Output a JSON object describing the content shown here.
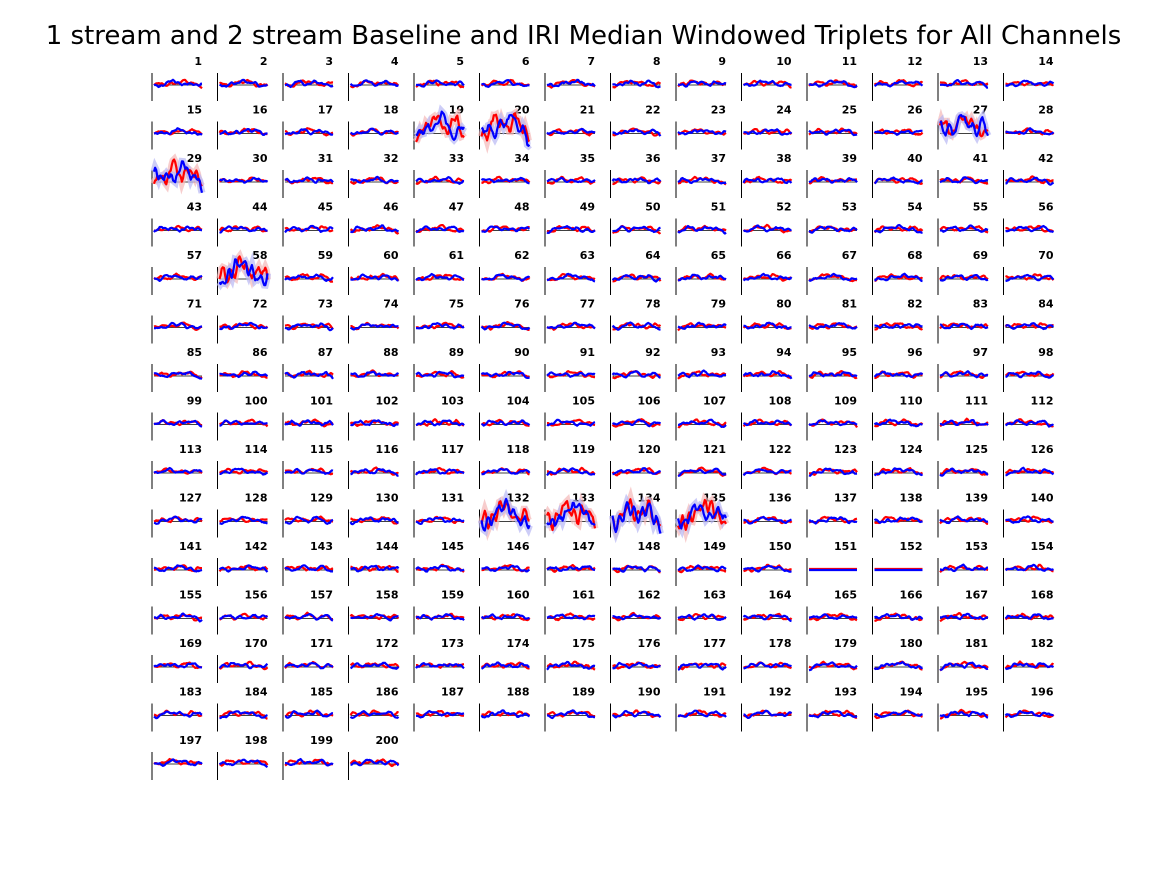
{
  "chart_data": {
    "type": "line",
    "title": "1 stream and 2 stream Baseline and IRI Median Windowed Triplets for All Channels",
    "layout": "small-multiples grid, 14 columns",
    "panel_labels": [
      "1",
      "2",
      "3",
      "4",
      "5",
      "6",
      "7",
      "8",
      "9",
      "10",
      "11",
      "12",
      "13",
      "14",
      "15",
      "16",
      "17",
      "18",
      "19",
      "20",
      "21",
      "22",
      "23",
      "24",
      "25",
      "26",
      "27",
      "28",
      "29",
      "30",
      "31",
      "32",
      "33",
      "34",
      "35",
      "36",
      "37",
      "38",
      "39",
      "40",
      "41",
      "42",
      "43",
      "44",
      "45",
      "46",
      "47",
      "48",
      "49",
      "50",
      "51",
      "52",
      "53",
      "54",
      "55",
      "56",
      "57",
      "58",
      "59",
      "60",
      "61",
      "62",
      "63",
      "64",
      "65",
      "66",
      "67",
      "68",
      "69",
      "70",
      "71",
      "72",
      "73",
      "74",
      "75",
      "76",
      "77",
      "78",
      "79",
      "80",
      "81",
      "82",
      "83",
      "84",
      "85",
      "86",
      "87",
      "88",
      "89",
      "90",
      "91",
      "92",
      "93",
      "94",
      "95",
      "96",
      "97",
      "98",
      "99",
      "100",
      "101",
      "102",
      "103",
      "104",
      "105",
      "106",
      "107",
      "108",
      "109",
      "110",
      "111",
      "112",
      "113",
      "114",
      "115",
      "116",
      "117",
      "118",
      "119",
      "120",
      "121",
      "122",
      "123",
      "124",
      "125",
      "126",
      "127",
      "128",
      "129",
      "130",
      "131",
      "132",
      "133",
      "134",
      "135",
      "136",
      "137",
      "138",
      "139",
      "140",
      "141",
      "142",
      "143",
      "144",
      "145",
      "146",
      "147",
      "148",
      "149",
      "150",
      "151",
      "152",
      "153",
      "154",
      "155",
      "156",
      "157",
      "158",
      "159",
      "160",
      "161",
      "162",
      "163",
      "164",
      "165",
      "166",
      "167",
      "168",
      "169",
      "170",
      "171",
      "172",
      "173",
      "174",
      "175",
      "176",
      "177",
      "178",
      "179",
      "180",
      "181",
      "182",
      "183",
      "184",
      "185",
      "186",
      "187",
      "188",
      "189",
      "190",
      "191",
      "192",
      "193",
      "194",
      "195",
      "196",
      "197",
      "198",
      "199",
      "200"
    ],
    "series_colors": [
      "#ff0000",
      "#0000ff"
    ],
    "band_colors": [
      "#f4b8b8",
      "#b8b8f4"
    ],
    "baseline_color": "#000000",
    "axis_color": "#000000",
    "large_swing_panels": [
      19,
      20,
      27,
      29,
      58,
      132,
      133,
      134,
      135
    ],
    "flat_panels": [
      151,
      152
    ]
  }
}
